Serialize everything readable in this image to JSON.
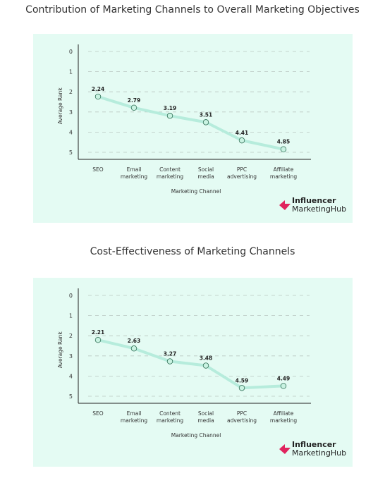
{
  "chart_data": [
    {
      "type": "line",
      "title": "Contribution of Marketing Channels to Overall Marketing Objectives",
      "xlabel": "Marketing Channel",
      "ylabel": "Average Rank",
      "categories": [
        [
          "SEO"
        ],
        [
          "Email",
          "marketing"
        ],
        [
          "Content",
          "marketing"
        ],
        [
          "Social",
          "media"
        ],
        [
          "PPC",
          "advertising"
        ],
        [
          "Affiliate",
          "marketing"
        ]
      ],
      "values": [
        2.24,
        2.79,
        3.19,
        3.51,
        4.41,
        4.85
      ],
      "labels": [
        "2.24",
        "2.79",
        "3.19",
        "3.51",
        "4.41",
        "4.85"
      ],
      "yticks": [
        "0",
        "1",
        "2",
        "3",
        "4",
        "5"
      ],
      "ylim": [
        0,
        5
      ],
      "y_inverted": true,
      "grid": "horizontal dashed"
    },
    {
      "type": "line",
      "title": "Cost-Effectiveness of Marketing Channels",
      "xlabel": "Marketing Channel",
      "ylabel": "Average Rank",
      "categories": [
        [
          "SEO"
        ],
        [
          "Email",
          "marketing"
        ],
        [
          "Content",
          "marketing"
        ],
        [
          "Social",
          "media"
        ],
        [
          "PPC",
          "advertising"
        ],
        [
          "Affiliate",
          "marketing"
        ]
      ],
      "values": [
        2.21,
        2.63,
        3.27,
        3.48,
        4.59,
        4.49
      ],
      "labels": [
        "2.21",
        "2.63",
        "3.27",
        "3.48",
        "4.59",
        "4.49"
      ],
      "yticks": [
        "0",
        "1",
        "2",
        "3",
        "4",
        "5"
      ],
      "ylim": [
        0,
        5
      ],
      "y_inverted": true,
      "grid": "horizontal dashed"
    }
  ],
  "logo": {
    "line1": "Influencer",
    "line2": "MarketingHub"
  },
  "colors": {
    "panel_bg": "#e4fbf3",
    "line": "#b6ecdc",
    "marker_fill": "#c9f3e2",
    "marker_stroke": "#2f6e55",
    "logo_mark": "#e0245e"
  }
}
